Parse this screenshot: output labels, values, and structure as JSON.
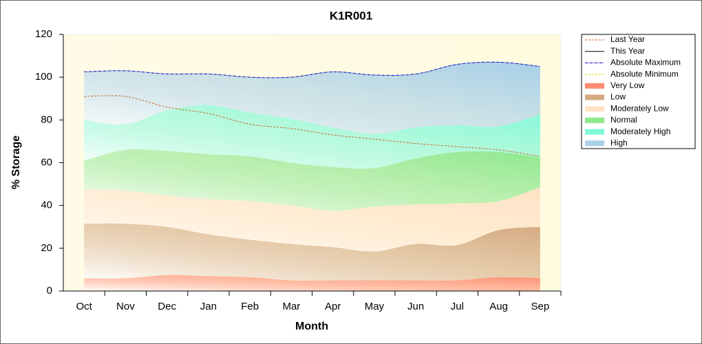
{
  "chart_data": {
    "type": "stacked_area_line",
    "title": "K1R001",
    "x_label": "Month",
    "y_label": "% Storage",
    "categories": [
      "Oct",
      "Nov",
      "Dec",
      "Jan",
      "Feb",
      "Mar",
      "Apr",
      "May",
      "Jun",
      "Jul",
      "Aug",
      "Sep"
    ],
    "ylim": [
      0,
      120
    ],
    "yticks": [
      0,
      20,
      40,
      60,
      80,
      100,
      120
    ],
    "legend": "right",
    "series": [
      {
        "name": "Last Year",
        "style": "dashed",
        "color": "#c8642a",
        "values": [
          91,
          91,
          86,
          83,
          78,
          76,
          73,
          71,
          69,
          67.5,
          66,
          63
        ]
      },
      {
        "name": "This Year",
        "style": "solid",
        "color": "#000000",
        "values": [
          null,
          null,
          null,
          null,
          null,
          null,
          null,
          null,
          null,
          null,
          null,
          null
        ]
      },
      {
        "name": "Absolute Maximum",
        "style": "dashdot",
        "color": "#0000c0",
        "values": [
          102.5,
          103,
          101.5,
          101.5,
          100,
          100,
          102.5,
          101,
          101.5,
          106,
          107,
          105
        ]
      },
      {
        "name": "Absolute Minimum",
        "style": "dashed",
        "color": "#e0d000",
        "values": [
          null,
          null,
          null,
          null,
          null,
          null,
          null,
          null,
          null,
          null,
          null,
          null
        ]
      },
      {
        "name": "Very Low",
        "style": "area",
        "color": "#ff8c70",
        "values": [
          6,
          6,
          7.5,
          7,
          6.5,
          5,
          5,
          5,
          5,
          5,
          6.5,
          6
        ]
      },
      {
        "name": "Low",
        "style": "area",
        "color": "#d4aa82",
        "values": [
          25.5,
          25.5,
          22.5,
          19.5,
          17.5,
          17,
          15.5,
          13.5,
          17,
          16.5,
          22,
          24
        ]
      },
      {
        "name": "Moderately Low",
        "style": "area",
        "color": "#ffe2c6",
        "values": [
          16,
          15.5,
          14.5,
          16.5,
          18,
          18,
          17,
          21,
          18.5,
          19.5,
          13.5,
          18.5
        ]
      },
      {
        "name": "Normal",
        "style": "area",
        "color": "#8ee88e",
        "values": [
          13.5,
          19,
          21,
          21,
          21,
          20,
          20.5,
          18,
          21.5,
          24,
          23,
          14
        ]
      },
      {
        "name": "Moderately High",
        "style": "area",
        "color": "#80f8d8",
        "values": [
          19,
          12,
          19,
          23,
          20.5,
          20.5,
          18.5,
          16,
          14.5,
          12.5,
          12,
          20
        ]
      },
      {
        "name": "High",
        "style": "area",
        "color": "#a8d0e8",
        "values": [
          22.5,
          25,
          17,
          14.5,
          16.5,
          19.5,
          26,
          27.5,
          25,
          28.5,
          30,
          22.5
        ]
      }
    ]
  }
}
